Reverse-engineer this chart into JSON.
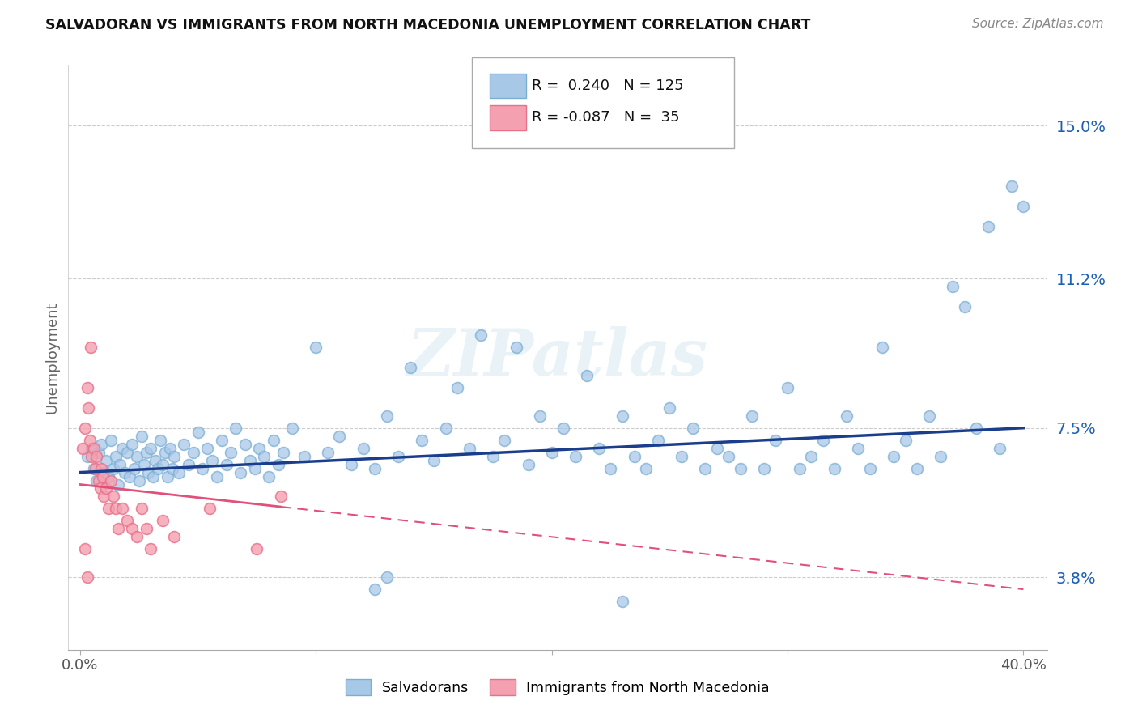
{
  "title": "SALVADORAN VS IMMIGRANTS FROM NORTH MACEDONIA UNEMPLOYMENT CORRELATION CHART",
  "source": "Source: ZipAtlas.com",
  "ylabel": "Unemployment",
  "yticks": [
    3.8,
    7.5,
    11.2,
    15.0
  ],
  "ytick_labels": [
    "3.8%",
    "7.5%",
    "11.2%",
    "15.0%"
  ],
  "xlim": [
    -0.5,
    41.0
  ],
  "ylim": [
    2.0,
    16.5
  ],
  "xticks": [
    0,
    10,
    20,
    30,
    40
  ],
  "xtick_labels": [
    "0.0%",
    "",
    "",
    "",
    "40.0%"
  ],
  "salvadoran_color": "#a8c8e8",
  "salvadoran_edge": "#7aafd4",
  "north_macedonia_color": "#f4a0b0",
  "north_macedonia_edge": "#e8708a",
  "trend_blue_color": "#1a3e8c",
  "trend_pink_color": "#e0507a",
  "watermark": "ZIPatlas",
  "legend_R_blue": "0.240",
  "legend_N_blue": "125",
  "legend_R_pink": "-0.087",
  "legend_N_pink": "35",
  "blue_trend_x0": 0,
  "blue_trend_y0": 6.4,
  "blue_trend_x1": 40,
  "blue_trend_y1": 7.5,
  "pink_trend_x0": 0,
  "pink_trend_y0": 6.1,
  "pink_trend_x1": 40,
  "pink_trend_y1": 3.5,
  "pink_solid_end_x": 8.5,
  "salvadoran_points": [
    [
      0.3,
      6.8
    ],
    [
      0.5,
      7.0
    ],
    [
      0.6,
      6.5
    ],
    [
      0.7,
      6.2
    ],
    [
      0.8,
      6.9
    ],
    [
      0.9,
      7.1
    ],
    [
      1.0,
      6.4
    ],
    [
      1.1,
      6.7
    ],
    [
      1.2,
      6.3
    ],
    [
      1.3,
      7.2
    ],
    [
      1.4,
      6.5
    ],
    [
      1.5,
      6.8
    ],
    [
      1.6,
      6.1
    ],
    [
      1.7,
      6.6
    ],
    [
      1.8,
      7.0
    ],
    [
      1.9,
      6.4
    ],
    [
      2.0,
      6.9
    ],
    [
      2.1,
      6.3
    ],
    [
      2.2,
      7.1
    ],
    [
      2.3,
      6.5
    ],
    [
      2.4,
      6.8
    ],
    [
      2.5,
      6.2
    ],
    [
      2.6,
      7.3
    ],
    [
      2.7,
      6.6
    ],
    [
      2.8,
      6.9
    ],
    [
      2.9,
      6.4
    ],
    [
      3.0,
      7.0
    ],
    [
      3.1,
      6.3
    ],
    [
      3.2,
      6.7
    ],
    [
      3.3,
      6.5
    ],
    [
      3.4,
      7.2
    ],
    [
      3.5,
      6.6
    ],
    [
      3.6,
      6.9
    ],
    [
      3.7,
      6.3
    ],
    [
      3.8,
      7.0
    ],
    [
      3.9,
      6.5
    ],
    [
      4.0,
      6.8
    ],
    [
      4.2,
      6.4
    ],
    [
      4.4,
      7.1
    ],
    [
      4.6,
      6.6
    ],
    [
      4.8,
      6.9
    ],
    [
      5.0,
      7.4
    ],
    [
      5.2,
      6.5
    ],
    [
      5.4,
      7.0
    ],
    [
      5.6,
      6.7
    ],
    [
      5.8,
      6.3
    ],
    [
      6.0,
      7.2
    ],
    [
      6.2,
      6.6
    ],
    [
      6.4,
      6.9
    ],
    [
      6.6,
      7.5
    ],
    [
      6.8,
      6.4
    ],
    [
      7.0,
      7.1
    ],
    [
      7.2,
      6.7
    ],
    [
      7.4,
      6.5
    ],
    [
      7.6,
      7.0
    ],
    [
      7.8,
      6.8
    ],
    [
      8.0,
      6.3
    ],
    [
      8.2,
      7.2
    ],
    [
      8.4,
      6.6
    ],
    [
      8.6,
      6.9
    ],
    [
      9.0,
      7.5
    ],
    [
      9.5,
      6.8
    ],
    [
      10.0,
      9.5
    ],
    [
      10.5,
      6.9
    ],
    [
      11.0,
      7.3
    ],
    [
      11.5,
      6.6
    ],
    [
      12.0,
      7.0
    ],
    [
      12.5,
      6.5
    ],
    [
      13.0,
      7.8
    ],
    [
      13.5,
      6.8
    ],
    [
      14.0,
      9.0
    ],
    [
      14.5,
      7.2
    ],
    [
      15.0,
      6.7
    ],
    [
      15.5,
      7.5
    ],
    [
      16.0,
      8.5
    ],
    [
      16.5,
      7.0
    ],
    [
      17.0,
      9.8
    ],
    [
      17.5,
      6.8
    ],
    [
      18.0,
      7.2
    ],
    [
      18.5,
      9.5
    ],
    [
      19.0,
      6.6
    ],
    [
      19.5,
      7.8
    ],
    [
      20.0,
      6.9
    ],
    [
      20.5,
      7.5
    ],
    [
      21.0,
      6.8
    ],
    [
      21.5,
      8.8
    ],
    [
      22.0,
      7.0
    ],
    [
      22.5,
      6.5
    ],
    [
      23.0,
      7.8
    ],
    [
      23.5,
      6.8
    ],
    [
      24.0,
      6.5
    ],
    [
      24.5,
      7.2
    ],
    [
      25.0,
      8.0
    ],
    [
      25.5,
      6.8
    ],
    [
      26.0,
      7.5
    ],
    [
      26.5,
      6.5
    ],
    [
      27.0,
      7.0
    ],
    [
      27.5,
      6.8
    ],
    [
      28.0,
      6.5
    ],
    [
      28.5,
      7.8
    ],
    [
      29.0,
      6.5
    ],
    [
      29.5,
      7.2
    ],
    [
      30.0,
      8.5
    ],
    [
      30.5,
      6.5
    ],
    [
      31.0,
      6.8
    ],
    [
      31.5,
      7.2
    ],
    [
      32.0,
      6.5
    ],
    [
      32.5,
      7.8
    ],
    [
      33.0,
      7.0
    ],
    [
      33.5,
      6.5
    ],
    [
      34.0,
      9.5
    ],
    [
      34.5,
      6.8
    ],
    [
      35.0,
      7.2
    ],
    [
      35.5,
      6.5
    ],
    [
      36.0,
      7.8
    ],
    [
      36.5,
      6.8
    ],
    [
      37.0,
      11.0
    ],
    [
      37.5,
      10.5
    ],
    [
      38.0,
      7.5
    ],
    [
      38.5,
      12.5
    ],
    [
      39.0,
      7.0
    ],
    [
      39.5,
      13.5
    ],
    [
      40.0,
      13.0
    ],
    [
      23.0,
      3.2
    ],
    [
      13.0,
      3.8
    ],
    [
      12.5,
      3.5
    ]
  ],
  "north_macedonia_points": [
    [
      0.1,
      7.0
    ],
    [
      0.2,
      7.5
    ],
    [
      0.3,
      8.5
    ],
    [
      0.35,
      8.0
    ],
    [
      0.4,
      7.2
    ],
    [
      0.45,
      9.5
    ],
    [
      0.5,
      6.8
    ],
    [
      0.6,
      7.0
    ],
    [
      0.65,
      6.5
    ],
    [
      0.7,
      6.8
    ],
    [
      0.8,
      6.2
    ],
    [
      0.85,
      6.0
    ],
    [
      0.9,
      6.5
    ],
    [
      0.95,
      6.3
    ],
    [
      1.0,
      5.8
    ],
    [
      1.1,
      6.0
    ],
    [
      1.2,
      5.5
    ],
    [
      1.3,
      6.2
    ],
    [
      1.4,
      5.8
    ],
    [
      1.5,
      5.5
    ],
    [
      1.6,
      5.0
    ],
    [
      1.8,
      5.5
    ],
    [
      2.0,
      5.2
    ],
    [
      2.2,
      5.0
    ],
    [
      2.4,
      4.8
    ],
    [
      2.6,
      5.5
    ],
    [
      2.8,
      5.0
    ],
    [
      3.0,
      4.5
    ],
    [
      3.5,
      5.2
    ],
    [
      4.0,
      4.8
    ],
    [
      5.5,
      5.5
    ],
    [
      7.5,
      4.5
    ],
    [
      8.5,
      5.8
    ],
    [
      0.2,
      4.5
    ],
    [
      0.3,
      3.8
    ]
  ]
}
